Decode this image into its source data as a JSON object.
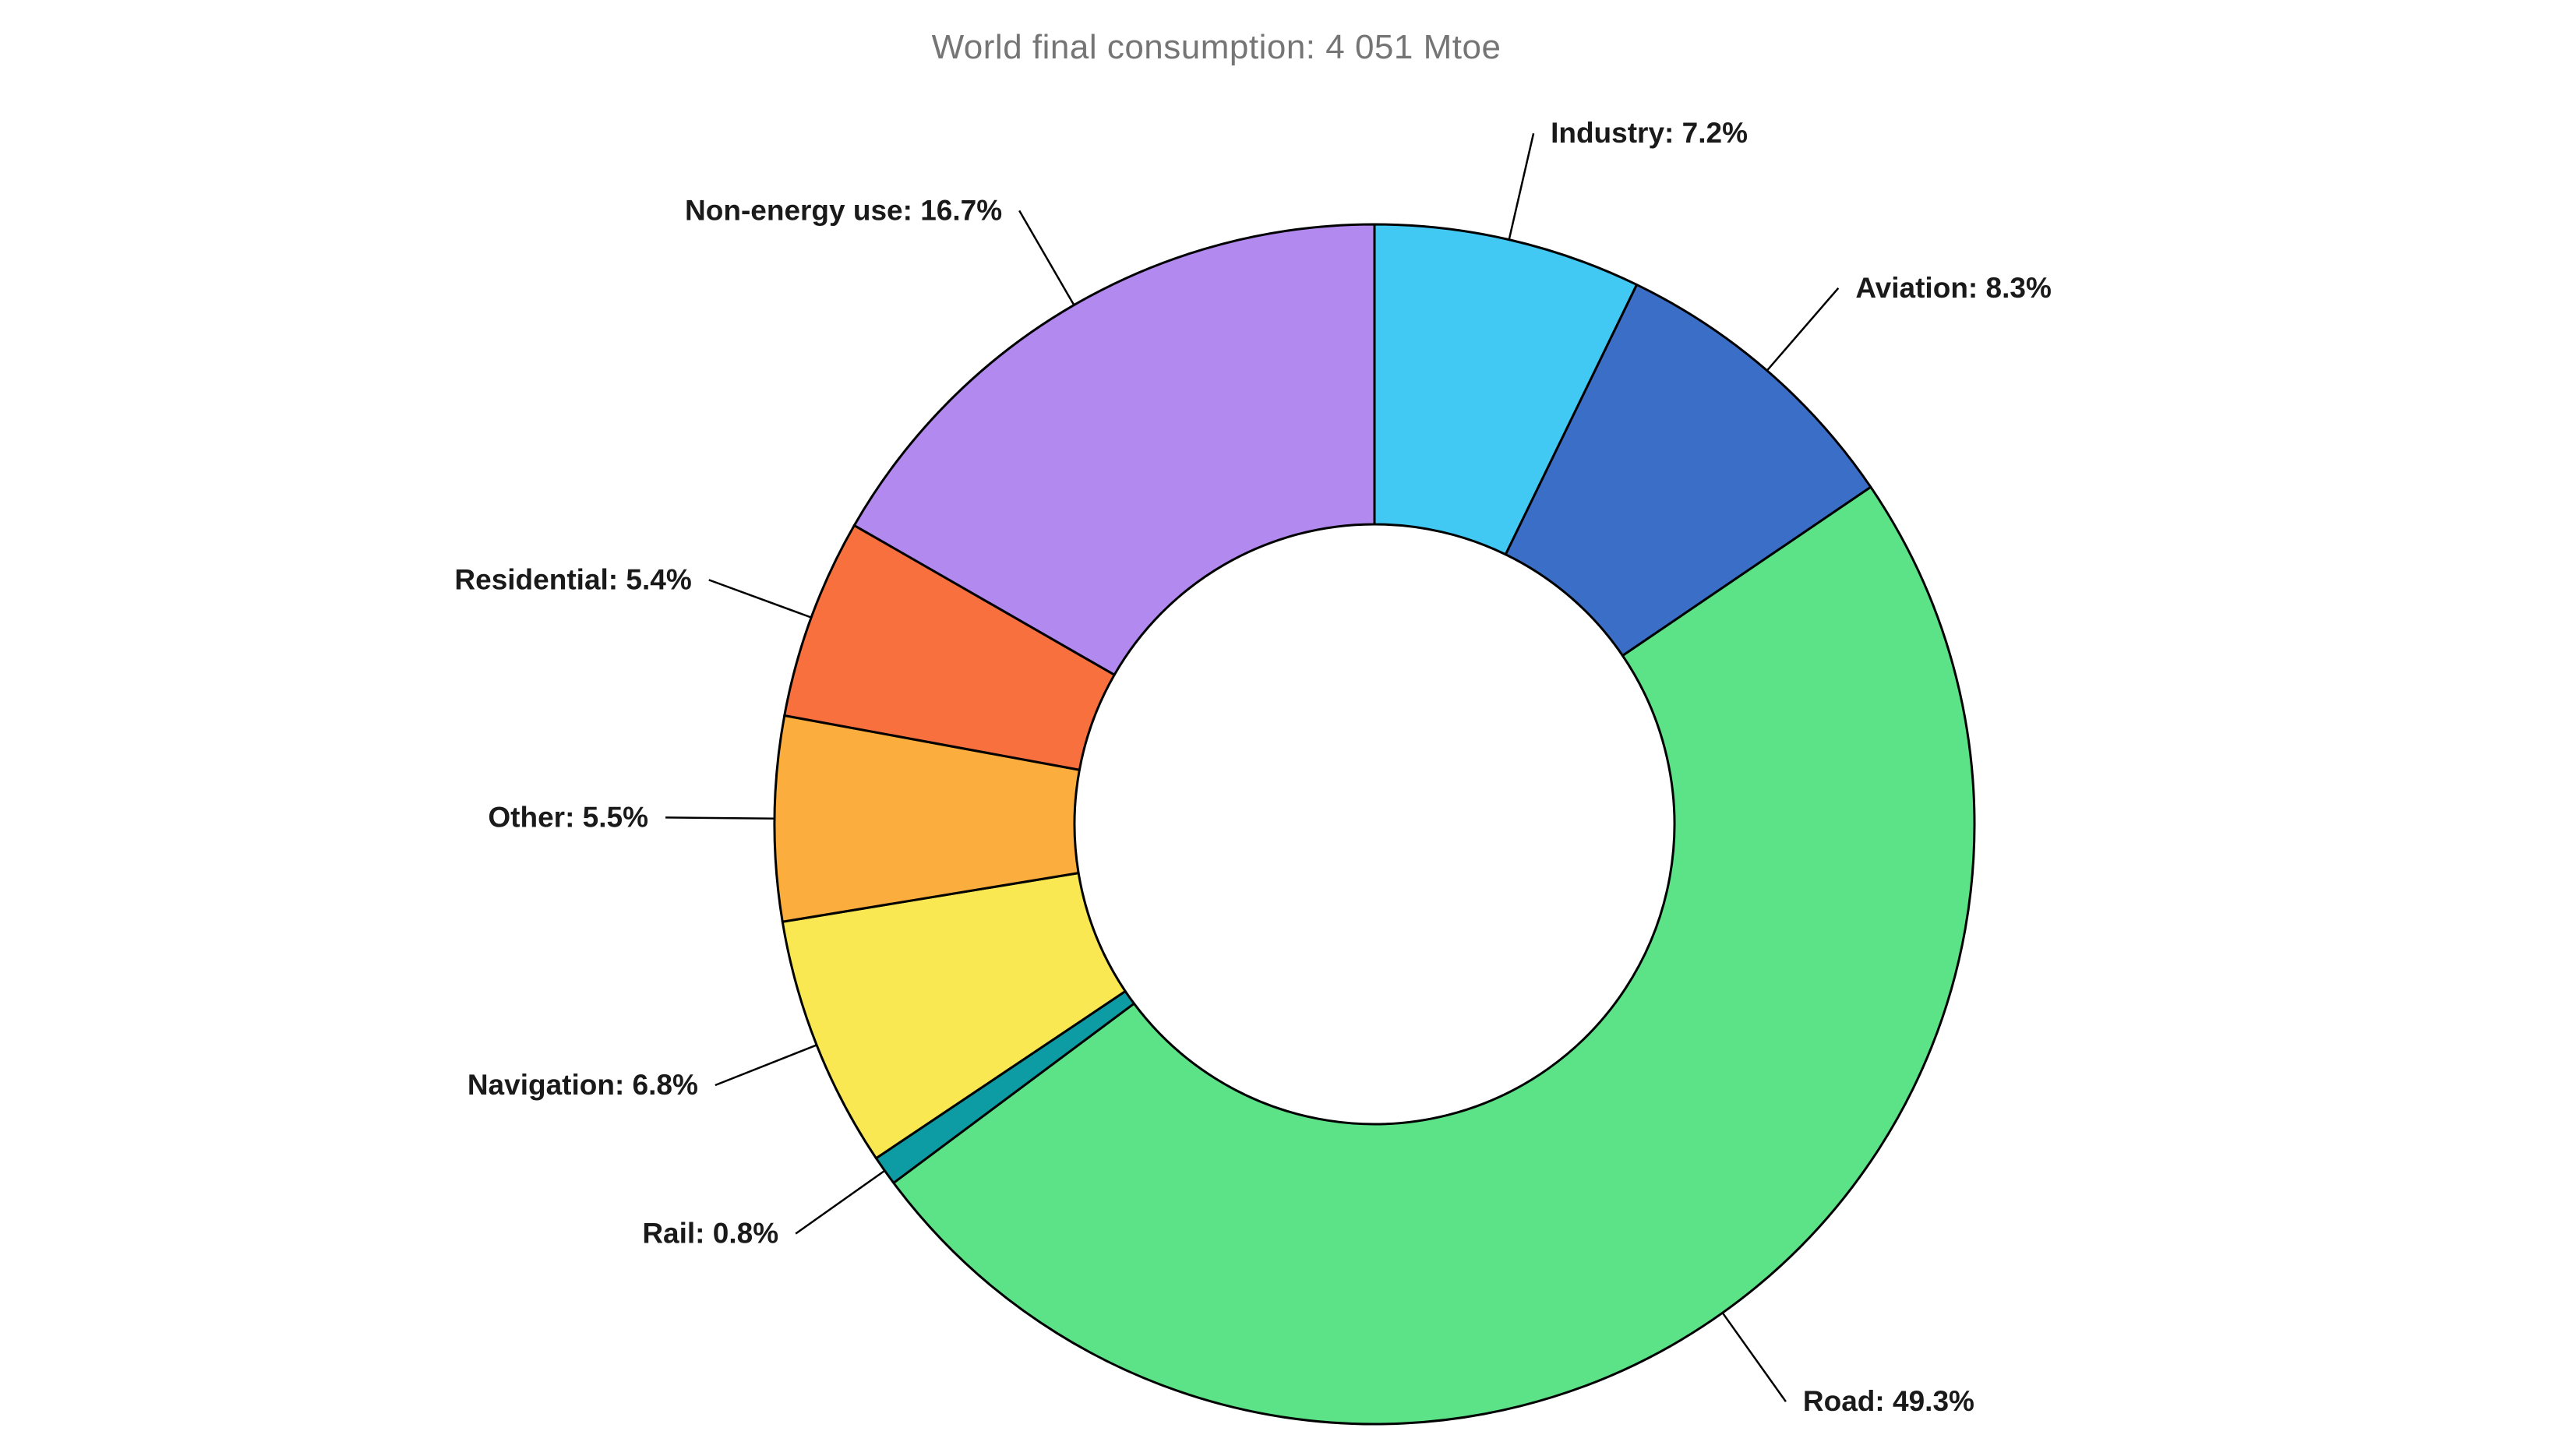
{
  "chart_data": {
    "type": "pie",
    "subtype": "donut",
    "title": "World final consumption: 4 051 Mtoe",
    "hole": 0.5,
    "direction": "clockwise",
    "start_angle": "top",
    "unit": "%",
    "categories": [
      "Industry",
      "Aviation",
      "Road",
      "Rail",
      "Navigation",
      "Other",
      "Residential",
      "Non-energy use"
    ],
    "values": [
      7.2,
      8.3,
      49.3,
      0.8,
      6.8,
      5.5,
      5.4,
      16.7
    ],
    "display_labels": [
      "Industry: 7.2%",
      "Aviation: 8.3%",
      "Road: 49.3%",
      "Rail: 0.8%",
      "Navigation: 6.8%",
      "Other: 5.5%",
      "Residential: 5.4%",
      "Non-energy use: 16.7%"
    ],
    "colors": [
      "#41C9F4",
      "#3B6FC7",
      "#5CE287",
      "#0D9CA4",
      "#F9E852",
      "#FBAD3D",
      "#F8703D",
      "#B289EF"
    ],
    "edge_color": "#000000",
    "label_color": "#1a1a1a",
    "title_color": "#757575",
    "legend": "none",
    "grid": false
  }
}
